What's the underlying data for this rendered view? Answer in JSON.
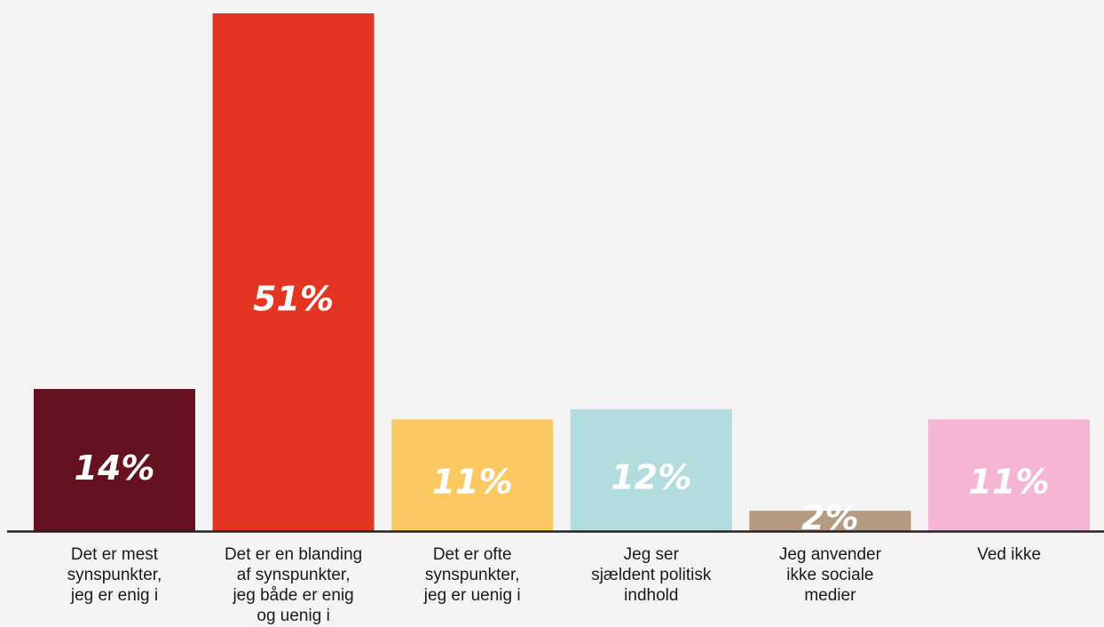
{
  "chart_data": {
    "type": "bar",
    "categories": [
      "Det er mest\nsynspunkter,\njeg er enig i",
      "Det er en blanding\naf synspunkter,\njeg både er enig\nog uenig i",
      "Det er ofte\nsynspunkter,\njeg er uenig i",
      "Jeg ser\nsjældent politisk\nindhold",
      "Jeg anvender\nikke sociale\nmedier",
      "Ved ikke"
    ],
    "values": [
      14,
      51,
      11,
      12,
      2,
      11
    ],
    "value_labels": [
      "14%",
      "51%",
      "11%",
      "12%",
      "2%",
      "11%"
    ],
    "colors": [
      "#65111F",
      "#E43523",
      "#FBC862",
      "#B2DCDD",
      "#B39A80",
      "#F4B6D4"
    ],
    "ylim": [
      0,
      51
    ],
    "title": "",
    "xlabel": "",
    "ylabel": "",
    "grid": false,
    "legend": "none"
  }
}
